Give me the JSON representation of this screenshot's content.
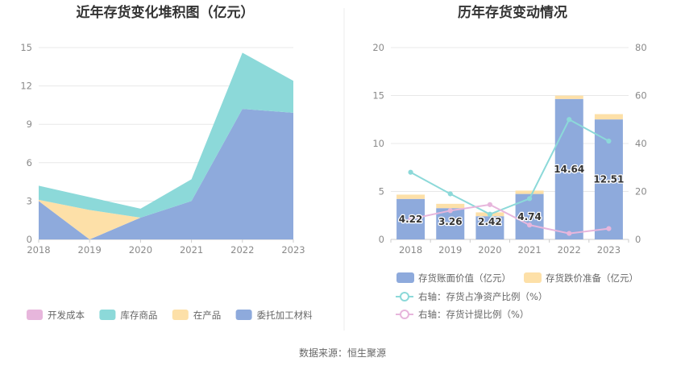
{
  "source_text": "数据来源：恒生聚源",
  "chart_data": [
    {
      "type": "area",
      "stacked": true,
      "title": "近年存货变化堆积图（亿元）",
      "x": [
        "2018",
        "2019",
        "2020",
        "2021",
        "2022",
        "2023"
      ],
      "ylim": [
        0,
        15
      ],
      "yticks": [
        "0",
        "3",
        "6",
        "9",
        "12",
        "15"
      ],
      "grid": true,
      "legend_position": "bottom",
      "series": [
        {
          "name": "委托加工材料",
          "color": "#8eaadc",
          "values": [
            3.0,
            0.0,
            1.7,
            3.0,
            10.2,
            9.9
          ]
        },
        {
          "name": "在产品",
          "color": "#fde0a8",
          "values": [
            0.1,
            2.3,
            0.0,
            0.0,
            0.0,
            0.0
          ]
        },
        {
          "name": "库存商品",
          "color": "#8cd9d9",
          "values": [
            1.1,
            1.0,
            0.7,
            1.7,
            4.4,
            2.5
          ]
        },
        {
          "name": "开发成本",
          "color": "#e7b6dc",
          "values": [
            0.0,
            0.0,
            0.0,
            0.0,
            0.0,
            0.0
          ]
        }
      ],
      "legend_order": [
        "开发成本",
        "库存商品",
        "在产品",
        "委托加工材料"
      ]
    },
    {
      "type": "bar",
      "title": "历年存货变动情况",
      "categories": [
        "2018",
        "2019",
        "2020",
        "2021",
        "2022",
        "2023"
      ],
      "ylim_left": [
        0,
        20
      ],
      "yticks_left": [
        "0",
        "5",
        "10",
        "15",
        "20"
      ],
      "ylim_right": [
        0,
        80
      ],
      "yticks_right": [
        "0",
        "20",
        "40",
        "60",
        "80"
      ],
      "grid": true,
      "legend_position": "bottom",
      "bars": [
        {
          "name": "存货账面价值（亿元）",
          "color": "#8eaadc",
          "values": [
            4.22,
            3.26,
            2.42,
            4.74,
            14.64,
            12.51
          ],
          "labels": [
            "4.22",
            "3.26",
            "2.42",
            "4.74",
            "14.64",
            "12.51"
          ]
        },
        {
          "name": "存货跌价准备（亿元）",
          "color": "#fde0a8",
          "values": [
            0.45,
            0.45,
            0.4,
            0.35,
            0.35,
            0.55
          ]
        }
      ],
      "lines": [
        {
          "name": "右轴：存货占净资产比例（%）",
          "color": "#8cd9d9",
          "axis": "right",
          "values": [
            28,
            19,
            10.5,
            17,
            50,
            41
          ]
        },
        {
          "name": "右轴：存货计提比例（%）",
          "color": "#e7b6dc",
          "axis": "right",
          "values": [
            8.5,
            12,
            14.5,
            6,
            2.5,
            4.5
          ]
        }
      ]
    }
  ]
}
